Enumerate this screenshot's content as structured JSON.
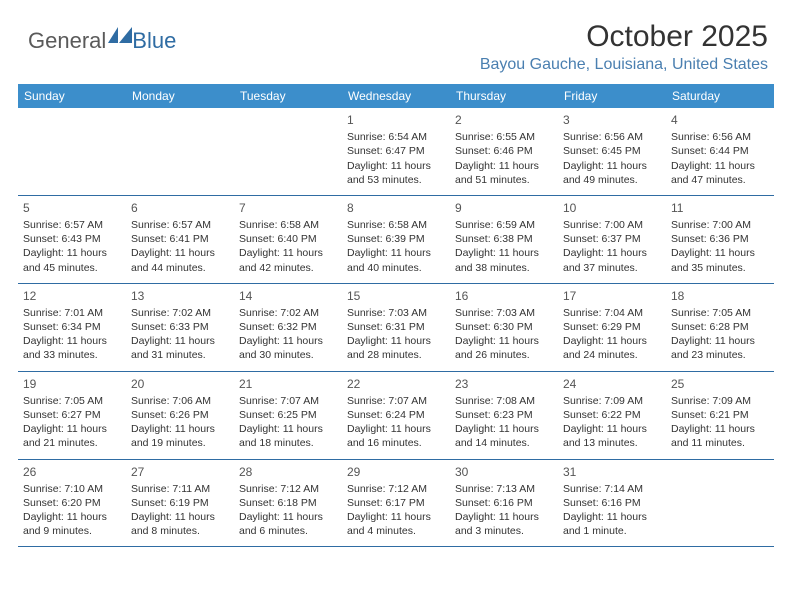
{
  "brand": {
    "general": "General",
    "blue": "Blue",
    "logo_color": "#2f6ca3"
  },
  "header": {
    "month_title": "October 2025",
    "location": "Bayou Gauche, Louisiana, United States"
  },
  "colors": {
    "header_bg": "#3c8ecb",
    "header_text": "#ffffff",
    "border": "#2f6ca3",
    "text": "#333333",
    "location_text": "#4a7fb0"
  },
  "day_headers": [
    "Sunday",
    "Monday",
    "Tuesday",
    "Wednesday",
    "Thursday",
    "Friday",
    "Saturday"
  ],
  "weeks": [
    [
      null,
      null,
      null,
      {
        "num": "1",
        "sunrise": "6:54 AM",
        "sunset": "6:47 PM",
        "daylight": "11 hours and 53 minutes."
      },
      {
        "num": "2",
        "sunrise": "6:55 AM",
        "sunset": "6:46 PM",
        "daylight": "11 hours and 51 minutes."
      },
      {
        "num": "3",
        "sunrise": "6:56 AM",
        "sunset": "6:45 PM",
        "daylight": "11 hours and 49 minutes."
      },
      {
        "num": "4",
        "sunrise": "6:56 AM",
        "sunset": "6:44 PM",
        "daylight": "11 hours and 47 minutes."
      }
    ],
    [
      {
        "num": "5",
        "sunrise": "6:57 AM",
        "sunset": "6:43 PM",
        "daylight": "11 hours and 45 minutes."
      },
      {
        "num": "6",
        "sunrise": "6:57 AM",
        "sunset": "6:41 PM",
        "daylight": "11 hours and 44 minutes."
      },
      {
        "num": "7",
        "sunrise": "6:58 AM",
        "sunset": "6:40 PM",
        "daylight": "11 hours and 42 minutes."
      },
      {
        "num": "8",
        "sunrise": "6:58 AM",
        "sunset": "6:39 PM",
        "daylight": "11 hours and 40 minutes."
      },
      {
        "num": "9",
        "sunrise": "6:59 AM",
        "sunset": "6:38 PM",
        "daylight": "11 hours and 38 minutes."
      },
      {
        "num": "10",
        "sunrise": "7:00 AM",
        "sunset": "6:37 PM",
        "daylight": "11 hours and 37 minutes."
      },
      {
        "num": "11",
        "sunrise": "7:00 AM",
        "sunset": "6:36 PM",
        "daylight": "11 hours and 35 minutes."
      }
    ],
    [
      {
        "num": "12",
        "sunrise": "7:01 AM",
        "sunset": "6:34 PM",
        "daylight": "11 hours and 33 minutes."
      },
      {
        "num": "13",
        "sunrise": "7:02 AM",
        "sunset": "6:33 PM",
        "daylight": "11 hours and 31 minutes."
      },
      {
        "num": "14",
        "sunrise": "7:02 AM",
        "sunset": "6:32 PM",
        "daylight": "11 hours and 30 minutes."
      },
      {
        "num": "15",
        "sunrise": "7:03 AM",
        "sunset": "6:31 PM",
        "daylight": "11 hours and 28 minutes."
      },
      {
        "num": "16",
        "sunrise": "7:03 AM",
        "sunset": "6:30 PM",
        "daylight": "11 hours and 26 minutes."
      },
      {
        "num": "17",
        "sunrise": "7:04 AM",
        "sunset": "6:29 PM",
        "daylight": "11 hours and 24 minutes."
      },
      {
        "num": "18",
        "sunrise": "7:05 AM",
        "sunset": "6:28 PM",
        "daylight": "11 hours and 23 minutes."
      }
    ],
    [
      {
        "num": "19",
        "sunrise": "7:05 AM",
        "sunset": "6:27 PM",
        "daylight": "11 hours and 21 minutes."
      },
      {
        "num": "20",
        "sunrise": "7:06 AM",
        "sunset": "6:26 PM",
        "daylight": "11 hours and 19 minutes."
      },
      {
        "num": "21",
        "sunrise": "7:07 AM",
        "sunset": "6:25 PM",
        "daylight": "11 hours and 18 minutes."
      },
      {
        "num": "22",
        "sunrise": "7:07 AM",
        "sunset": "6:24 PM",
        "daylight": "11 hours and 16 minutes."
      },
      {
        "num": "23",
        "sunrise": "7:08 AM",
        "sunset": "6:23 PM",
        "daylight": "11 hours and 14 minutes."
      },
      {
        "num": "24",
        "sunrise": "7:09 AM",
        "sunset": "6:22 PM",
        "daylight": "11 hours and 13 minutes."
      },
      {
        "num": "25",
        "sunrise": "7:09 AM",
        "sunset": "6:21 PM",
        "daylight": "11 hours and 11 minutes."
      }
    ],
    [
      {
        "num": "26",
        "sunrise": "7:10 AM",
        "sunset": "6:20 PM",
        "daylight": "11 hours and 9 minutes."
      },
      {
        "num": "27",
        "sunrise": "7:11 AM",
        "sunset": "6:19 PM",
        "daylight": "11 hours and 8 minutes."
      },
      {
        "num": "28",
        "sunrise": "7:12 AM",
        "sunset": "6:18 PM",
        "daylight": "11 hours and 6 minutes."
      },
      {
        "num": "29",
        "sunrise": "7:12 AM",
        "sunset": "6:17 PM",
        "daylight": "11 hours and 4 minutes."
      },
      {
        "num": "30",
        "sunrise": "7:13 AM",
        "sunset": "6:16 PM",
        "daylight": "11 hours and 3 minutes."
      },
      {
        "num": "31",
        "sunrise": "7:14 AM",
        "sunset": "6:16 PM",
        "daylight": "11 hours and 1 minute."
      },
      null
    ]
  ],
  "labels": {
    "sunrise": "Sunrise:",
    "sunset": "Sunset:",
    "daylight": "Daylight:"
  }
}
